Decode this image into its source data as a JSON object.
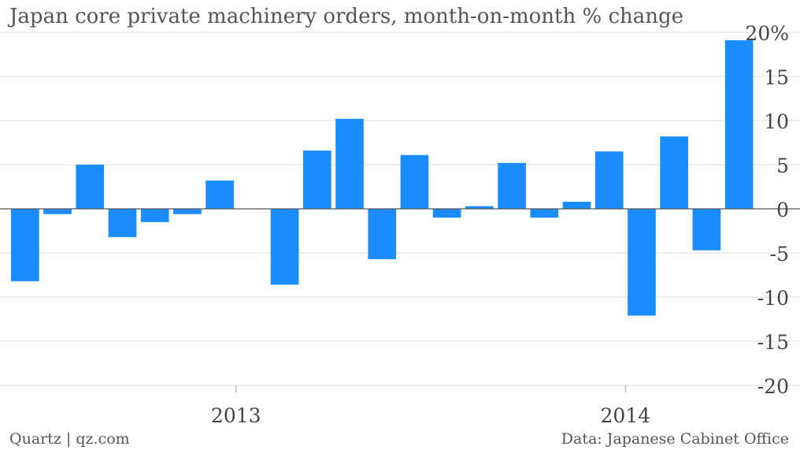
{
  "title": "Japan core private machinery orders, month-on-month % change",
  "source_left": "Quartz | qz.com",
  "source_right": "Data: Japanese Cabinet Office",
  "chart_data": {
    "type": "bar",
    "title": "Japan core private machinery orders, month-on-month % change",
    "xlabel": "",
    "ylabel": "",
    "ylim": [
      -20,
      20
    ],
    "yticks": [
      20,
      15,
      10,
      5,
      0,
      -5,
      -10,
      -15,
      -20
    ],
    "ytick_labels": [
      "20%",
      "15",
      "10",
      "5",
      "0",
      "-5",
      "-10",
      "-15",
      "-20"
    ],
    "x_tick_labels": [
      "2013",
      "2014"
    ],
    "grid": true,
    "color": "#1a8cff",
    "values": [
      -8.2,
      -0.6,
      5.0,
      -3.2,
      -1.5,
      -0.6,
      3.2,
      0.0,
      -8.6,
      6.6,
      10.2,
      -5.7,
      6.1,
      -1.0,
      0.3,
      5.2,
      -1.0,
      0.8,
      6.5,
      -12.1,
      8.2,
      -4.7,
      19.1
    ]
  }
}
